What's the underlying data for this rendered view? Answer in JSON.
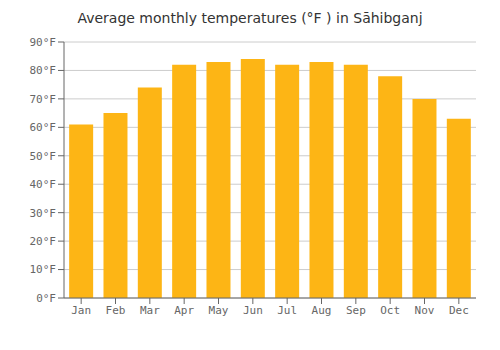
{
  "chart_data": {
    "type": "bar",
    "title": "Average monthly temperatures (°F ) in Sāhibganj",
    "categories": [
      "Jan",
      "Feb",
      "Mar",
      "Apr",
      "May",
      "Jun",
      "Jul",
      "Aug",
      "Sep",
      "Oct",
      "Nov",
      "Dec"
    ],
    "values": [
      61,
      65,
      74,
      82,
      83,
      84,
      82,
      83,
      82,
      78,
      70,
      63
    ],
    "color": "#FDB515",
    "ylim": [
      0,
      90
    ],
    "yticks": [
      {
        "value": 0,
        "label": "0°F"
      },
      {
        "value": 10,
        "label": "10°F"
      },
      {
        "value": 20,
        "label": "20°F"
      },
      {
        "value": 30,
        "label": "30°F"
      },
      {
        "value": 40,
        "label": "40°F"
      },
      {
        "value": 50,
        "label": "50°F"
      },
      {
        "value": 60,
        "label": "60°F"
      },
      {
        "value": 70,
        "label": "70°F"
      },
      {
        "value": 80,
        "label": "80°F"
      },
      {
        "value": 90,
        "label": "90°F"
      }
    ],
    "grid": true
  }
}
